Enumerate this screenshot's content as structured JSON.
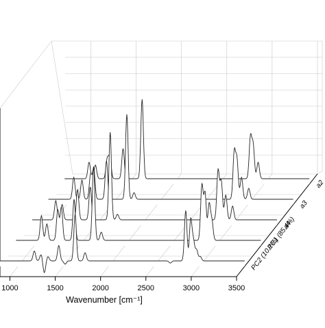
{
  "chart_data": {
    "type": "line",
    "title": "",
    "xlabel": "Wavenumber [cm⁻¹]",
    "ylabel": "",
    "xlim": [
      800,
      3500
    ],
    "x_ticks": [
      1000,
      1500,
      2000,
      2500,
      3000,
      3500
    ],
    "x_tick_labels": [
      "1000",
      "1500",
      "2000",
      "2500",
      "3000",
      "3500"
    ],
    "grid": true,
    "series": [
      {
        "name": "PC2 (10.1%)",
        "baseline": 0,
        "peaks": [
          [
            1180,
            0.18
          ],
          [
            1255,
            0.12
          ],
          [
            1290,
            -0.22
          ],
          [
            1330,
            0.08
          ],
          [
            1450,
            0.28
          ],
          [
            1520,
            -0.06
          ],
          [
            1630,
            0.85
          ],
          [
            1740,
            0.15
          ],
          [
            2680,
            -0.04
          ],
          [
            2850,
            0.92
          ],
          [
            2905,
            0.75
          ],
          [
            2935,
            0.35
          ],
          [
            2970,
            0.2
          ],
          [
            3010,
            0.08
          ]
        ]
      },
      {
        "name": "PC1 (85.4%)",
        "baseline": 0,
        "peaks": [
          [
            1080,
            0.45
          ],
          [
            1140,
            0.3
          ],
          [
            1260,
            0.55
          ],
          [
            1300,
            0.6
          ],
          [
            1440,
            0.75
          ],
          [
            1655,
            1.35
          ],
          [
            1740,
            0.15
          ],
          [
            2850,
            1.0
          ],
          [
            2885,
            0.85
          ],
          [
            2930,
            0.65
          ],
          [
            2960,
            0.35
          ]
        ]
      },
      {
        "name": "a4",
        "baseline": 0,
        "peaks": [
          [
            1060,
            0.35
          ],
          [
            1130,
            0.28
          ],
          [
            1300,
            0.55
          ],
          [
            1440,
            0.6
          ],
          [
            1660,
            1.6
          ],
          [
            1740,
            0.1
          ],
          [
            2850,
            0.9
          ],
          [
            2885,
            0.7
          ],
          [
            2935,
            0.45
          ],
          [
            3010,
            0.25
          ]
        ]
      },
      {
        "name": "a3",
        "baseline": 0,
        "peaks": [
          [
            1080,
            0.4
          ],
          [
            1170,
            0.35
          ],
          [
            1265,
            0.45
          ],
          [
            1300,
            0.55
          ],
          [
            1440,
            0.7
          ],
          [
            1665,
            1.55
          ],
          [
            1745,
            0.12
          ],
          [
            2850,
            0.85
          ],
          [
            2880,
            0.7
          ],
          [
            2930,
            0.4
          ],
          [
            3010,
            0.2
          ]
        ]
      },
      {
        "name": "a2",
        "baseline": 0,
        "peaks": [
          [
            1070,
            0.3
          ],
          [
            1140,
            0.25
          ],
          [
            1270,
            0.35
          ],
          [
            1300,
            0.4
          ],
          [
            1445,
            0.55
          ],
          [
            1655,
            1.45
          ],
          [
            2850,
            0.75
          ],
          [
            2880,
            0.6
          ],
          [
            2935,
            0.3
          ]
        ]
      }
    ]
  }
}
